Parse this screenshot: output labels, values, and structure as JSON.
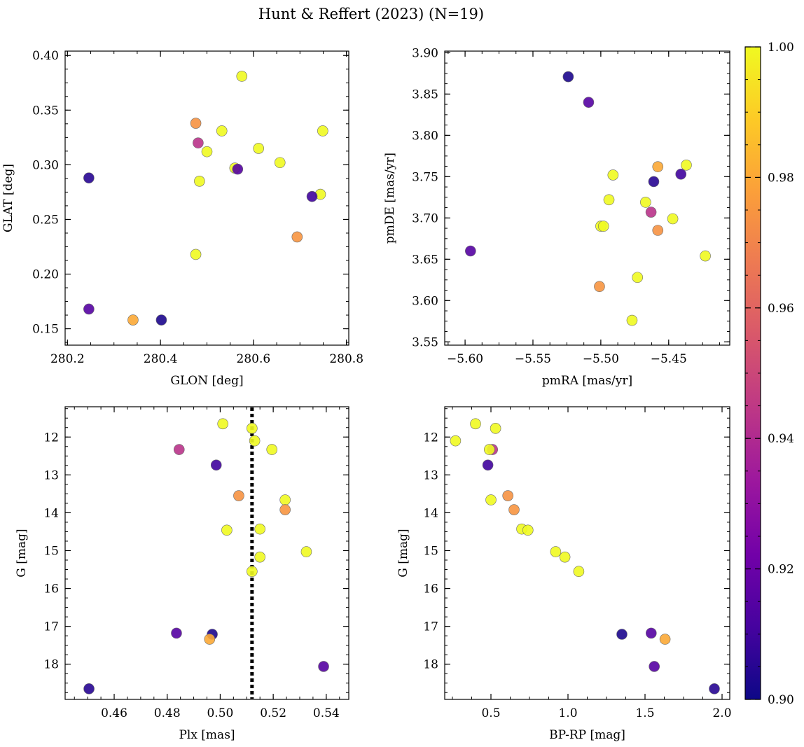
{
  "figure": {
    "title": "Hunt & Reffert (2023) (N=19)"
  },
  "colorbar": {
    "cmap": "plasma",
    "vmin": 0.9,
    "vmax": 1.0,
    "ticks": [
      "0.90",
      "0.92",
      "0.94",
      "0.96",
      "0.98",
      "1.00"
    ],
    "stops": [
      "#0d0887",
      "#46039f",
      "#7201a8",
      "#9c179e",
      "#bd3786",
      "#d8576b",
      "#ed7953",
      "#fb9f3a",
      "#fdca26",
      "#f0f921"
    ]
  },
  "chart_data": [
    {
      "type": "scatter",
      "xlabel": "GLON [deg]",
      "ylabel": "GLAT [deg]",
      "xlim": [
        280.195,
        280.805
      ],
      "ylim": [
        0.135,
        0.404
      ],
      "xticks": [
        280.2,
        280.4,
        280.6,
        280.8
      ],
      "xticklabels": [
        "280.2",
        "280.4",
        "280.6",
        "280.8"
      ],
      "yticks": [
        0.15,
        0.2,
        0.25,
        0.3,
        0.35,
        0.4
      ],
      "yticklabels": [
        "0.15",
        "0.20",
        "0.25",
        "0.30",
        "0.35",
        "0.40"
      ],
      "points": [
        {
          "x": 280.575,
          "y": 0.381,
          "c": 1.0
        },
        {
          "x": 280.476,
          "y": 0.338,
          "c": 0.974
        },
        {
          "x": 280.532,
          "y": 0.331,
          "c": 1.0
        },
        {
          "x": 280.749,
          "y": 0.331,
          "c": 1.0
        },
        {
          "x": 280.481,
          "y": 0.32,
          "c": 0.943
        },
        {
          "x": 280.611,
          "y": 0.315,
          "c": 1.0
        },
        {
          "x": 280.5,
          "y": 0.312,
          "c": 1.0
        },
        {
          "x": 280.657,
          "y": 0.302,
          "c": 1.0
        },
        {
          "x": 280.56,
          "y": 0.297,
          "c": 1.0
        },
        {
          "x": 280.566,
          "y": 0.296,
          "c": 0.915
        },
        {
          "x": 280.246,
          "y": 0.288,
          "c": 0.905
        },
        {
          "x": 280.484,
          "y": 0.285,
          "c": 1.0
        },
        {
          "x": 280.744,
          "y": 0.273,
          "c": 1.0
        },
        {
          "x": 280.726,
          "y": 0.271,
          "c": 0.91
        },
        {
          "x": 280.694,
          "y": 0.234,
          "c": 0.975
        },
        {
          "x": 280.476,
          "y": 0.218,
          "c": 1.0
        },
        {
          "x": 280.246,
          "y": 0.168,
          "c": 0.915
        },
        {
          "x": 280.341,
          "y": 0.158,
          "c": 0.98
        },
        {
          "x": 280.402,
          "y": 0.158,
          "c": 0.903
        }
      ]
    },
    {
      "type": "scatter",
      "xlabel": "pmRA [mas/yr]",
      "ylabel": "pmDE [mas/yr]",
      "xlim": [
        -5.615,
        -5.405
      ],
      "ylim": [
        3.546,
        3.902
      ],
      "xticks": [
        -5.6,
        -5.55,
        -5.5,
        -5.45
      ],
      "xticklabels": [
        "−5.60",
        "−5.55",
        "−5.50",
        "−5.45"
      ],
      "yticks": [
        3.55,
        3.6,
        3.65,
        3.7,
        3.75,
        3.8,
        3.85,
        3.9
      ],
      "yticklabels": [
        "3.55",
        "3.60",
        "3.65",
        "3.70",
        "3.75",
        "3.80",
        "3.85",
        "3.90"
      ],
      "points": [
        {
          "x": -5.524,
          "y": 3.871,
          "c": 0.903
        },
        {
          "x": -5.509,
          "y": 3.84,
          "c": 0.915
        },
        {
          "x": -5.437,
          "y": 3.764,
          "c": 1.0
        },
        {
          "x": -5.458,
          "y": 3.762,
          "c": 0.98
        },
        {
          "x": -5.491,
          "y": 3.752,
          "c": 1.0
        },
        {
          "x": -5.441,
          "y": 3.753,
          "c": 0.91
        },
        {
          "x": -5.461,
          "y": 3.744,
          "c": 0.905
        },
        {
          "x": -5.494,
          "y": 3.722,
          "c": 1.0
        },
        {
          "x": -5.467,
          "y": 3.719,
          "c": 1.0
        },
        {
          "x": -5.463,
          "y": 3.707,
          "c": 0.943
        },
        {
          "x": -5.458,
          "y": 3.685,
          "c": 0.974
        },
        {
          "x": -5.447,
          "y": 3.699,
          "c": 1.0
        },
        {
          "x": -5.5,
          "y": 3.69,
          "c": 1.0
        },
        {
          "x": -5.498,
          "y": 3.69,
          "c": 1.0
        },
        {
          "x": -5.596,
          "y": 3.66,
          "c": 0.915
        },
        {
          "x": -5.423,
          "y": 3.654,
          "c": 1.0
        },
        {
          "x": -5.473,
          "y": 3.628,
          "c": 1.0
        },
        {
          "x": -5.501,
          "y": 3.617,
          "c": 0.975
        },
        {
          "x": -5.477,
          "y": 3.576,
          "c": 1.0
        }
      ]
    },
    {
      "type": "scatter",
      "xlabel": "Plx [mas]",
      "ylabel": "G [mag]",
      "xlim": [
        0.4415,
        0.5485
      ],
      "ylim": [
        18.93,
        11.2
      ],
      "y_inverted": true,
      "xticks": [
        0.46,
        0.48,
        0.5,
        0.52,
        0.54
      ],
      "xticklabels": [
        "0.46",
        "0.48",
        "0.50",
        "0.52",
        "0.54"
      ],
      "yticks": [
        12,
        13,
        14,
        15,
        16,
        17,
        18
      ],
      "yticklabels": [
        "12",
        "13",
        "14",
        "15",
        "16",
        "17",
        "18"
      ],
      "vline": {
        "x": 0.512,
        "style": "dotted"
      },
      "points": [
        {
          "x": 0.501,
          "y": 11.65,
          "c": 1.0
        },
        {
          "x": 0.512,
          "y": 11.77,
          "c": 1.0
        },
        {
          "x": 0.513,
          "y": 12.1,
          "c": 1.0
        },
        {
          "x": 0.5195,
          "y": 12.33,
          "c": 1.0
        },
        {
          "x": 0.4845,
          "y": 12.33,
          "c": 0.943
        },
        {
          "x": 0.4985,
          "y": 12.74,
          "c": 0.91
        },
        {
          "x": 0.507,
          "y": 13.55,
          "c": 0.974
        },
        {
          "x": 0.5245,
          "y": 13.66,
          "c": 1.0
        },
        {
          "x": 0.5245,
          "y": 13.92,
          "c": 0.975
        },
        {
          "x": 0.515,
          "y": 14.43,
          "c": 1.0
        },
        {
          "x": 0.5025,
          "y": 14.46,
          "c": 1.0
        },
        {
          "x": 0.5325,
          "y": 15.03,
          "c": 1.0
        },
        {
          "x": 0.515,
          "y": 15.17,
          "c": 1.0
        },
        {
          "x": 0.512,
          "y": 15.55,
          "c": 1.0
        },
        {
          "x": 0.4835,
          "y": 17.18,
          "c": 0.915
        },
        {
          "x": 0.497,
          "y": 17.21,
          "c": 0.903
        },
        {
          "x": 0.496,
          "y": 17.34,
          "c": 0.98
        },
        {
          "x": 0.539,
          "y": 18.06,
          "c": 0.915
        },
        {
          "x": 0.4505,
          "y": 18.65,
          "c": 0.905
        }
      ]
    },
    {
      "type": "scatter",
      "xlabel": "BP-RP [mag]",
      "ylabel": "G [mag]",
      "xlim": [
        0.2,
        2.05
      ],
      "ylim": [
        18.93,
        11.2
      ],
      "y_inverted": true,
      "xticks": [
        0.5,
        1.0,
        1.5,
        2.0
      ],
      "xticklabels": [
        "0.5",
        "1.0",
        "1.5",
        "2.0"
      ],
      "yticks": [
        12,
        13,
        14,
        15,
        16,
        17,
        18
      ],
      "yticklabels": [
        "12",
        "13",
        "14",
        "15",
        "16",
        "17",
        "18"
      ],
      "points": [
        {
          "x": 0.4,
          "y": 11.65,
          "c": 1.0
        },
        {
          "x": 0.53,
          "y": 11.77,
          "c": 1.0
        },
        {
          "x": 0.27,
          "y": 12.1,
          "c": 1.0
        },
        {
          "x": 0.51,
          "y": 12.33,
          "c": 0.943
        },
        {
          "x": 0.49,
          "y": 12.33,
          "c": 1.0
        },
        {
          "x": 0.48,
          "y": 12.74,
          "c": 0.91
        },
        {
          "x": 0.61,
          "y": 13.55,
          "c": 0.974
        },
        {
          "x": 0.5,
          "y": 13.66,
          "c": 1.0
        },
        {
          "x": 0.65,
          "y": 13.92,
          "c": 0.975
        },
        {
          "x": 0.7,
          "y": 14.43,
          "c": 1.0
        },
        {
          "x": 0.74,
          "y": 14.46,
          "c": 1.0
        },
        {
          "x": 0.92,
          "y": 15.03,
          "c": 1.0
        },
        {
          "x": 0.98,
          "y": 15.17,
          "c": 1.0
        },
        {
          "x": 1.07,
          "y": 15.55,
          "c": 1.0
        },
        {
          "x": 1.54,
          "y": 17.18,
          "c": 0.915
        },
        {
          "x": 1.35,
          "y": 17.21,
          "c": 0.903
        },
        {
          "x": 1.63,
          "y": 17.34,
          "c": 0.98
        },
        {
          "x": 1.56,
          "y": 18.06,
          "c": 0.915
        },
        {
          "x": 1.95,
          "y": 18.65,
          "c": 0.905
        }
      ]
    }
  ]
}
